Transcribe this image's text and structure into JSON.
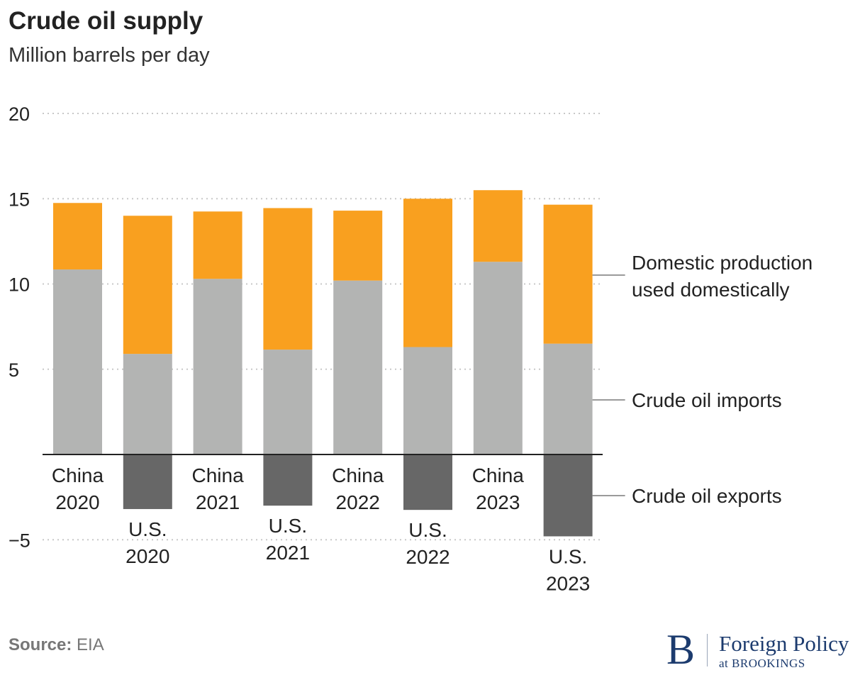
{
  "title": "Crude oil supply",
  "subtitle": "Million barrels per day",
  "source": {
    "label": "Source:",
    "value": "EIA"
  },
  "brand": {
    "logo": "B",
    "name": "Foreign Policy",
    "sub": "at BROOKINGS"
  },
  "colors": {
    "domestic": "#f9a01f",
    "imports": "#b3b4b3",
    "exports": "#676767",
    "grid": "#c8c8c8",
    "axis": "#222222",
    "leader": "#9a9a9a"
  },
  "chart_data": {
    "type": "bar",
    "stacked": true,
    "ylim": [
      -5,
      20
    ],
    "yticks": [
      20,
      15,
      10,
      5,
      -5
    ],
    "ytick_labels": [
      "20",
      "15",
      "10",
      "5",
      "−5"
    ],
    "grid": "dotted horizontal",
    "categories": [
      [
        "China",
        "2020"
      ],
      [
        "U.S.",
        "2020"
      ],
      [
        "China",
        "2021"
      ],
      [
        "U.S.",
        "2021"
      ],
      [
        "China",
        "2022"
      ],
      [
        "U.S.",
        "2022"
      ],
      [
        "China",
        "2023"
      ],
      [
        "U.S.",
        "2023"
      ]
    ],
    "series": [
      {
        "name": "Crude oil imports",
        "key": "imports",
        "values": [
          10.85,
          5.9,
          10.3,
          6.15,
          10.2,
          6.3,
          11.3,
          6.5
        ]
      },
      {
        "name": "Domestic production used domestically",
        "key": "domestic",
        "values": [
          3.9,
          8.1,
          3.95,
          8.3,
          4.1,
          8.7,
          4.2,
          8.15
        ]
      },
      {
        "name": "Crude oil exports",
        "key": "exports",
        "values": [
          0,
          -3.2,
          0,
          -3.0,
          0,
          -3.25,
          0,
          -4.8
        ]
      }
    ],
    "legend": {
      "placement": "right",
      "entries": [
        {
          "key": "domestic",
          "lines": [
            "Domestic production",
            "used domestically"
          ]
        },
        {
          "key": "imports",
          "lines": [
            "Crude oil imports"
          ]
        },
        {
          "key": "exports",
          "lines": [
            "Crude oil exports"
          ]
        }
      ]
    }
  }
}
